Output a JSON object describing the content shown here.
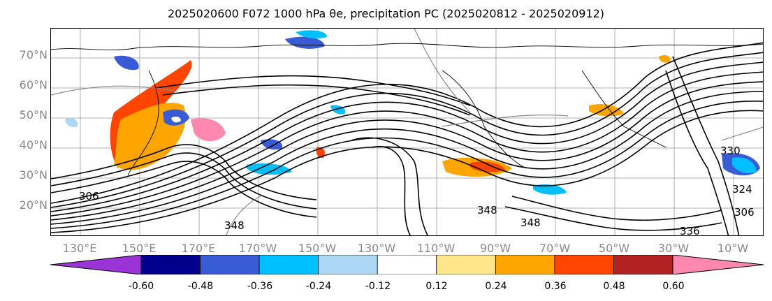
{
  "title": "2025020600 F072 1000 hPa θe, precipitation PC (2025020812 - 2025020912)",
  "lat_labels": [
    "70°N",
    "60°N",
    "50°N",
    "40°N",
    "30°N",
    "20°N"
  ],
  "lon_labels": [
    "130°E",
    "150°E",
    "170°E",
    "170°W",
    "150°W",
    "130°W",
    "110°W",
    "90°W",
    "70°W",
    "50°W",
    "30°W",
    "10°W"
  ],
  "contour_labels": [
    "348",
    "348",
    "348",
    "306",
    "306",
    "336",
    "330",
    "324"
  ],
  "colorbar": {
    "colors": [
      "#9b34d6",
      "#00008b",
      "#3a5bd6",
      "#00bfff",
      "#add8f5",
      "#ffffff",
      "#ffe68a",
      "#ffa500",
      "#ff4500",
      "#b22222",
      "#ff88b0"
    ],
    "tick_labels": [
      "-0.60",
      "-0.48",
      "-0.36",
      "-0.24",
      "-0.12",
      "0.12",
      "0.24",
      "0.36",
      "0.48",
      "0.60"
    ]
  }
}
